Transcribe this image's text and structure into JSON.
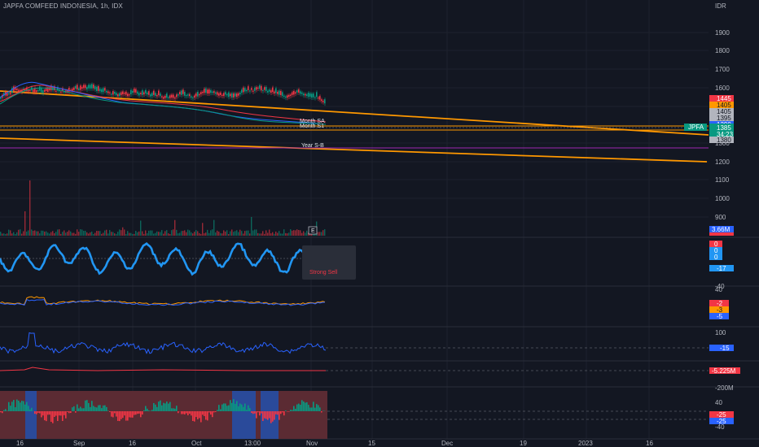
{
  "header": {
    "symbol_title": "JAPFA COMFEED INDONESIA, 1h, IDX"
  },
  "price_axis": {
    "currency": "IDR",
    "ticks": [
      "1900",
      "1800",
      "1700",
      "1600",
      "1500",
      "1400",
      "1300",
      "1200",
      "1100",
      "1000",
      "900"
    ]
  },
  "price_tags": [
    {
      "label": "1445",
      "color": "#f23645",
      "text": "light"
    },
    {
      "label": "1405",
      "color": "#ff9800",
      "text": "dark"
    },
    {
      "label": "1405",
      "color": "#b2b5be",
      "text": "dark"
    },
    {
      "label": "1395",
      "color": "#b2b5be",
      "text": "dark"
    },
    {
      "label": "1390",
      "color": "#2962ff",
      "text": "light"
    },
    {
      "label": "1385",
      "color": "#089981",
      "text": "light"
    },
    {
      "label": "34:23",
      "color": "#089981",
      "text": "light"
    },
    {
      "label": "1380",
      "color": "#b2b5be",
      "text": "dark"
    }
  ],
  "symbol_badge": "JPFA",
  "annotations": {
    "year_sb": "Year S-B",
    "month_s1": "Month S1",
    "month_sa": "Month SA"
  },
  "earnings_marker": "E",
  "volume_tag": "3.66M",
  "oscillator1": {
    "tags": [
      "0",
      "0",
      "0",
      "-17"
    ],
    "axis": [
      "-40"
    ],
    "tooltip": "Strong Sell"
  },
  "oscillator2": {
    "tags": [
      "-2",
      "-3",
      "-5"
    ],
    "axis": [
      "40"
    ]
  },
  "cci": {
    "axis": [
      "100"
    ],
    "tag": "-15"
  },
  "obv": {
    "tag": "-5.225M",
    "axis": [
      "-200M"
    ]
  },
  "momentum": {
    "axis": [
      "40",
      "-40"
    ],
    "tags": [
      "-25",
      "-25"
    ]
  },
  "time_axis": [
    "16",
    "Sep",
    "16",
    "Oct",
    "13:00",
    "Nov",
    "15",
    "Dec",
    "19",
    "2023",
    "16"
  ],
  "colors": {
    "background": "#131722",
    "grid": "#1e222d",
    "trend": "#ff9800",
    "purple": "#9c27b0",
    "osc_blue": "#2196f3",
    "up": "#089981",
    "down": "#f23645"
  }
}
